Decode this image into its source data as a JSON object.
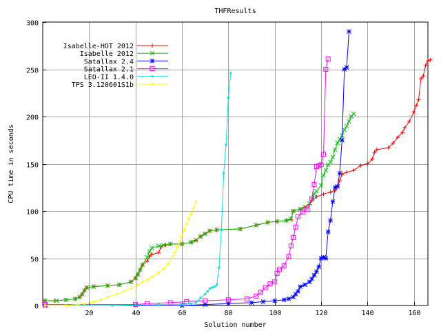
{
  "chart_data": {
    "type": "line",
    "title": "THFResults",
    "xlabel": "Solution number",
    "ylabel": "CPU time in seconds",
    "xlim": [
      0,
      166
    ],
    "ylim": [
      0,
      300
    ],
    "xticks": [
      20,
      40,
      60,
      80,
      100,
      120,
      140,
      160
    ],
    "yticks": [
      0,
      50,
      100,
      150,
      200,
      250,
      300
    ],
    "grid": true,
    "legend_position": "top-left",
    "series": [
      {
        "name": "Isabelle-HOT 2012",
        "color": "#ff0000",
        "marker": "plus",
        "points": [
          [
            1,
            5
          ],
          [
            5,
            5
          ],
          [
            10,
            6
          ],
          [
            14,
            7
          ],
          [
            16,
            9
          ],
          [
            17,
            12
          ],
          [
            18,
            16
          ],
          [
            19,
            19
          ],
          [
            22,
            20
          ],
          [
            28,
            21
          ],
          [
            33,
            22
          ],
          [
            38,
            25
          ],
          [
            40,
            29
          ],
          [
            41,
            33
          ],
          [
            42,
            38
          ],
          [
            43,
            43
          ],
          [
            45,
            47
          ],
          [
            46,
            52
          ],
          [
            47,
            54
          ],
          [
            50,
            56
          ],
          [
            51,
            62
          ],
          [
            53,
            64
          ],
          [
            55,
            65
          ],
          [
            60,
            65
          ],
          [
            64,
            67
          ],
          [
            66,
            69
          ],
          [
            68,
            73
          ],
          [
            70,
            76
          ],
          [
            72,
            79
          ],
          [
            75,
            80
          ],
          [
            85,
            81
          ],
          [
            92,
            85
          ],
          [
            97,
            88
          ],
          [
            101,
            89
          ],
          [
            105,
            90
          ],
          [
            107,
            91
          ],
          [
            108,
            100
          ],
          [
            111,
            102
          ],
          [
            113,
            104
          ],
          [
            115,
            107
          ],
          [
            116,
            111
          ],
          [
            118,
            115
          ],
          [
            121,
            118
          ],
          [
            124,
            120
          ],
          [
            126,
            122
          ],
          [
            127,
            126
          ],
          [
            128,
            132
          ],
          [
            129,
            139
          ],
          [
            131,
            141
          ],
          [
            134,
            143
          ],
          [
            137,
            148
          ],
          [
            140,
            150
          ],
          [
            142,
            155
          ],
          [
            143,
            162
          ],
          [
            144,
            165
          ],
          [
            149,
            167
          ],
          [
            151,
            172
          ],
          [
            153,
            178
          ],
          [
            155,
            183
          ],
          [
            156,
            188
          ],
          [
            158,
            195
          ],
          [
            160,
            205
          ],
          [
            161,
            212
          ],
          [
            162,
            218
          ],
          [
            163,
            240
          ],
          [
            164,
            243
          ],
          [
            165,
            254
          ],
          [
            166,
            259
          ],
          [
            167,
            260
          ]
        ]
      },
      {
        "name": "Isabelle 2012",
        "color": "#00c000",
        "marker": "cross",
        "points": [
          [
            1,
            5
          ],
          [
            6,
            5
          ],
          [
            10,
            6
          ],
          [
            14,
            7
          ],
          [
            16,
            9
          ],
          [
            17,
            12
          ],
          [
            18,
            16
          ],
          [
            19,
            19
          ],
          [
            22,
            20
          ],
          [
            28,
            21
          ],
          [
            33,
            22
          ],
          [
            38,
            25
          ],
          [
            40,
            29
          ],
          [
            41,
            33
          ],
          [
            42,
            38
          ],
          [
            43,
            43
          ],
          [
            45,
            51
          ],
          [
            46,
            57
          ],
          [
            47,
            61
          ],
          [
            50,
            63
          ],
          [
            52,
            64
          ],
          [
            55,
            65
          ],
          [
            60,
            65
          ],
          [
            64,
            67
          ],
          [
            66,
            69
          ],
          [
            68,
            73
          ],
          [
            70,
            76
          ],
          [
            72,
            79
          ],
          [
            75,
            80
          ],
          [
            85,
            81
          ],
          [
            92,
            85
          ],
          [
            97,
            88
          ],
          [
            101,
            89
          ],
          [
            105,
            90
          ],
          [
            107,
            92
          ],
          [
            108,
            100
          ],
          [
            111,
            102
          ],
          [
            113,
            104
          ],
          [
            115,
            108
          ],
          [
            116,
            112
          ],
          [
            117,
            118
          ],
          [
            118,
            121
          ],
          [
            120,
            127
          ],
          [
            121,
            138
          ],
          [
            122,
            143
          ],
          [
            123,
            149
          ],
          [
            124,
            152
          ],
          [
            125,
            157
          ],
          [
            126,
            165
          ],
          [
            127,
            172
          ],
          [
            128,
            176
          ],
          [
            129,
            180
          ],
          [
            130,
            186
          ],
          [
            131,
            190
          ],
          [
            132,
            195
          ],
          [
            133,
            200
          ],
          [
            134,
            203
          ]
        ]
      },
      {
        "name": "Satallax 2.4",
        "color": "#0000ff",
        "marker": "star",
        "points": [
          [
            1,
            0
          ],
          [
            60,
            0
          ],
          [
            70,
            1
          ],
          [
            80,
            2
          ],
          [
            90,
            3
          ],
          [
            95,
            4
          ],
          [
            100,
            5
          ],
          [
            104,
            6
          ],
          [
            106,
            7
          ],
          [
            108,
            9
          ],
          [
            109,
            12
          ],
          [
            110,
            15
          ],
          [
            111,
            20
          ],
          [
            113,
            22
          ],
          [
            115,
            25
          ],
          [
            116,
            28
          ],
          [
            117,
            32
          ],
          [
            118,
            36
          ],
          [
            119,
            41
          ],
          [
            120,
            50
          ],
          [
            121,
            51
          ],
          [
            122,
            50
          ],
          [
            123,
            78
          ],
          [
            124,
            90
          ],
          [
            125,
            110
          ],
          [
            126,
            125
          ],
          [
            127,
            126
          ],
          [
            128,
            140
          ],
          [
            129,
            175
          ],
          [
            130,
            250
          ],
          [
            131,
            252
          ],
          [
            132,
            290
          ]
        ]
      },
      {
        "name": "Satallax 2.1",
        "color": "#ff00ff",
        "marker": "box",
        "points": [
          [
            1,
            1
          ],
          [
            40,
            1
          ],
          [
            45,
            2
          ],
          [
            55,
            3
          ],
          [
            62,
            4
          ],
          [
            70,
            5
          ],
          [
            80,
            6
          ],
          [
            88,
            7
          ],
          [
            92,
            10
          ],
          [
            94,
            14
          ],
          [
            96,
            19
          ],
          [
            98,
            23
          ],
          [
            100,
            25
          ],
          [
            101,
            34
          ],
          [
            102,
            38
          ],
          [
            104,
            42
          ],
          [
            106,
            52
          ],
          [
            107,
            63
          ],
          [
            108,
            72
          ],
          [
            109,
            83
          ],
          [
            110,
            94
          ],
          [
            112,
            99
          ],
          [
            114,
            102
          ],
          [
            116,
            113
          ],
          [
            117,
            128
          ],
          [
            118,
            147
          ],
          [
            119,
            148
          ],
          [
            120,
            149
          ],
          [
            121,
            160
          ],
          [
            122,
            250
          ],
          [
            123,
            261
          ]
        ]
      },
      {
        "name": "LEO-II 1.4.0",
        "color": "#00e0e0",
        "marker": "dot",
        "points": [
          [
            1,
            0
          ],
          [
            30,
            0
          ],
          [
            50,
            1
          ],
          [
            60,
            1
          ],
          [
            64,
            2
          ],
          [
            66,
            3
          ],
          [
            67,
            5
          ],
          [
            68,
            8
          ],
          [
            70,
            12
          ],
          [
            71,
            15
          ],
          [
            72,
            18
          ],
          [
            73,
            19
          ],
          [
            74,
            20
          ],
          [
            75,
            22
          ],
          [
            76,
            40
          ],
          [
            77,
            80
          ],
          [
            78,
            140
          ],
          [
            79,
            170
          ],
          [
            80,
            220
          ],
          [
            81,
            246
          ]
        ]
      },
      {
        "name": "TPS 3.120601S1b",
        "color": "#ffff00",
        "marker": "dot",
        "points": [
          [
            1,
            0
          ],
          [
            10,
            0
          ],
          [
            15,
            1
          ],
          [
            18,
            2
          ],
          [
            22,
            4
          ],
          [
            25,
            6
          ],
          [
            28,
            9
          ],
          [
            32,
            12
          ],
          [
            35,
            15
          ],
          [
            38,
            18
          ],
          [
            41,
            22
          ],
          [
            43,
            25
          ],
          [
            45,
            27
          ],
          [
            47,
            30
          ],
          [
            50,
            35
          ],
          [
            52,
            39
          ],
          [
            54,
            44
          ],
          [
            56,
            50
          ],
          [
            57,
            56
          ],
          [
            58,
            62
          ],
          [
            59,
            68
          ],
          [
            60,
            74
          ],
          [
            61,
            80
          ],
          [
            62,
            86
          ],
          [
            63,
            92
          ],
          [
            64,
            97
          ],
          [
            65,
            103
          ],
          [
            66,
            110
          ]
        ]
      }
    ]
  }
}
